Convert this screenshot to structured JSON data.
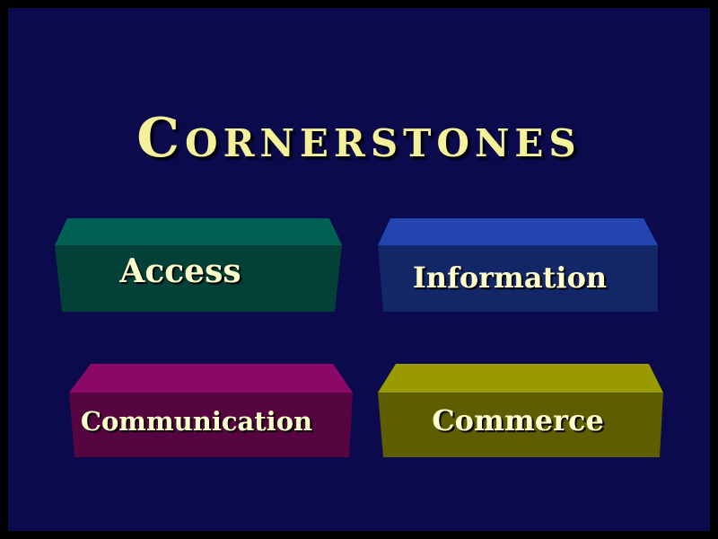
{
  "slide": {
    "title": "Cornerstones",
    "blocks": [
      {
        "label": "Access",
        "top_color": "#006055",
        "front_color": "#034038"
      },
      {
        "label": "Information",
        "top_color": "#2245b0",
        "front_color": "#132668"
      },
      {
        "label": "Communication",
        "top_color": "#8a0866",
        "front_color": "#560540"
      },
      {
        "label": "Commerce",
        "top_color": "#999a00",
        "front_color": "#5e5e00"
      }
    ],
    "colors": {
      "background": "#0a0a4c",
      "border": "#000000",
      "text": "#f5f09a"
    }
  }
}
